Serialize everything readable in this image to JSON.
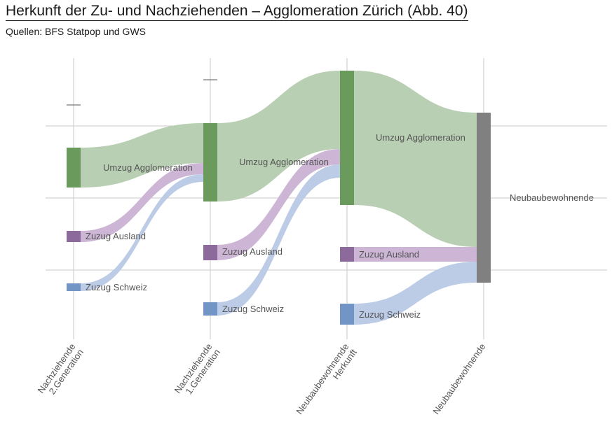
{
  "title": "Herkunft der Zu- und Nachziehenden – Agglomeration Zürich  (Abb. 40)",
  "subtitle": "Quellen: BFS Statpop und GWS",
  "chart_data": {
    "type": "sankey",
    "columns": [
      {
        "id": "c0",
        "label_lines": [
          "Nachziehende",
          "2.Generation"
        ]
      },
      {
        "id": "c1",
        "label_lines": [
          "Nachziehende",
          "1.Generation"
        ]
      },
      {
        "id": "c2",
        "label_lines": [
          "Neubaubewohnende",
          "Herkunft"
        ]
      },
      {
        "id": "c3",
        "label_lines": [
          "Neubaubewohnende"
        ]
      }
    ],
    "nodes": [
      {
        "id": "n0a",
        "column": 0,
        "label": "Umzug Agglomeration",
        "value": 57,
        "category": "agglo"
      },
      {
        "id": "n0b",
        "column": 0,
        "label": "Zuzug Ausland",
        "value": 16,
        "category": "ausland"
      },
      {
        "id": "n0c",
        "column": 0,
        "label": "Zuzug Schweiz",
        "value": 11,
        "category": "schweiz"
      },
      {
        "id": "n1a",
        "column": 1,
        "label": "Umzug Agglomeration",
        "value": 112,
        "category": "agglo"
      },
      {
        "id": "n1b",
        "column": 1,
        "label": "Zuzug Ausland",
        "value": 22,
        "category": "ausland"
      },
      {
        "id": "n1c",
        "column": 1,
        "label": "Zuzug Schweiz",
        "value": 19,
        "category": "schweiz"
      },
      {
        "id": "n2a",
        "column": 2,
        "label": "Umzug Agglomeration",
        "value": 192,
        "category": "agglo"
      },
      {
        "id": "n2b",
        "column": 2,
        "label": "Zuzug Ausland",
        "value": 21,
        "category": "ausland"
      },
      {
        "id": "n2c",
        "column": 2,
        "label": "Zuzug Schweiz",
        "value": 30,
        "category": "schweiz"
      },
      {
        "id": "n3",
        "column": 3,
        "label": "Neubaubewohnende",
        "value": 243,
        "category": "total"
      }
    ],
    "links": [
      {
        "source": "n0a",
        "target": "n1a",
        "value": 57
      },
      {
        "source": "n0b",
        "target": "n1a",
        "value": 16
      },
      {
        "source": "n0c",
        "target": "n1a",
        "value": 11
      },
      {
        "source": "n1a",
        "target": "n2a",
        "value": 112
      },
      {
        "source": "n1b",
        "target": "n2a",
        "value": 22
      },
      {
        "source": "n1c",
        "target": "n2a",
        "value": 19
      },
      {
        "source": "n2a",
        "target": "n3",
        "value": 192
      },
      {
        "source": "n2b",
        "target": "n3",
        "value": 21
      },
      {
        "source": "n2c",
        "target": "n3",
        "value": 30
      }
    ],
    "colors": {
      "agglo_node": "#6a9a5c",
      "agglo_link": "#b9cfb3",
      "ausland_node": "#8c6a9c",
      "ausland_link": "#cdb6d5",
      "schweiz_node": "#7395c6",
      "schweiz_link": "#bccbe6",
      "total_node": "#808080",
      "grid": "#c8c8c8"
    }
  }
}
